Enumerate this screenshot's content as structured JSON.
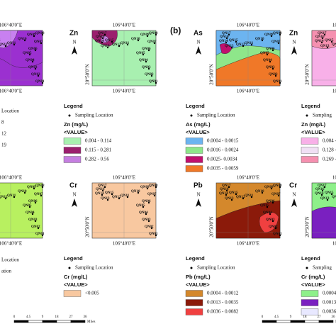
{
  "panel_label": "(b)",
  "coordinate_x": "106°40'0\"E",
  "coordinate_y": "20°50'0\"N",
  "north": "N",
  "stations": [
    "QN17",
    "QN16",
    "QN15",
    "QN14",
    "QN13",
    "QN12",
    "QN11",
    "QN10",
    "QN09",
    "QN08",
    "QN07",
    "QN06",
    "QN05",
    "QN04",
    "QN03",
    "QN02",
    "QN01"
  ],
  "panels": [
    {
      "legend_items": [
        {
          "label": "Location",
          "color": "#ffffff"
        },
        {
          "label": "8",
          "color": "#f4f000"
        },
        {
          "label": "12",
          "color": "#9b30d0"
        },
        {
          "label": "19",
          "color": "#c880f0"
        }
      ]
    },
    {
      "element": "Zn",
      "legend": "Legend",
      "sampling": "Sampling Location",
      "unit": "Zn (mg/L)",
      "value_head": "<VALUE>",
      "classes": [
        {
          "label": "0.004 - 0.114",
          "color": "#a8f0b0"
        },
        {
          "label": "0.115 - 0.281",
          "color": "#9b1f6e"
        },
        {
          "label": "0.282 - 0.56",
          "color": "#c57fe0"
        }
      ]
    },
    {
      "element": "As",
      "legend": "Legend",
      "sampling": "Sampling Location",
      "unit": "As (mg/L)",
      "value_head": "<VALUE>",
      "classes": [
        {
          "label": "0.0004 - 0.0015",
          "color": "#6cb4f0"
        },
        {
          "label": "0.0016 - 0.0024",
          "color": "#8ee68a"
        },
        {
          "label": "0.0025- 0.0034",
          "color": "#c0106e"
        },
        {
          "label": "0.0035 - 0.0059",
          "color": "#f07828"
        }
      ]
    },
    {
      "element": "Zn",
      "legend": "Legend",
      "sampling": "Sampling",
      "unit": "Zn (mg/L)",
      "value_head": "<VALUE>",
      "classes": [
        {
          "label": "0.004 - 0",
          "color": "#f8b0e8"
        },
        {
          "label": "0.128 - 0",
          "color": "#f0e0f4"
        },
        {
          "label": "0.269 - 0",
          "color": "#f590b0"
        }
      ]
    },
    {
      "legend_items": [
        {
          "label": "Location",
          "color": "#ffffff"
        },
        {
          "label": "ation",
          "color": "#ffffff"
        }
      ]
    },
    {
      "element": "Cr",
      "legend": "Legend",
      "sampling": "Sampling Location",
      "unit": "Cr (mg/L)",
      "value_head": "<VALUE>",
      "classes": [
        {
          "label": "<0.005",
          "color": "#f8c8a0"
        }
      ]
    },
    {
      "element": "Pb",
      "legend": "Legend",
      "sampling": "Sampling Location",
      "unit": "Pb (mg/L)",
      "value_head": "<VALUE>",
      "classes": [
        {
          "label": "0.0004 - 0.0012",
          "color": "#d4882c"
        },
        {
          "label": "0.0013 - 0.0035",
          "color": "#8b1a0a"
        },
        {
          "label": "0.0036 - 0.0082",
          "color": "#f04040"
        }
      ]
    },
    {
      "element": "Cr",
      "legend": "Legend",
      "sampling": "Sampling",
      "unit": "Cr (mg/L)",
      "value_head": "<VALUE>",
      "classes": [
        {
          "label": "0.0004",
          "color": "#8ef08a"
        },
        {
          "label": "0.0013",
          "color": "#7a20c0"
        },
        {
          "label": "0.0036",
          "color": "#e8e8ff"
        }
      ]
    }
  ],
  "scale_bar": {
    "labels": [
      "0",
      "4.5",
      "9",
      "18",
      "27",
      "36"
    ],
    "unit": "Miles"
  }
}
